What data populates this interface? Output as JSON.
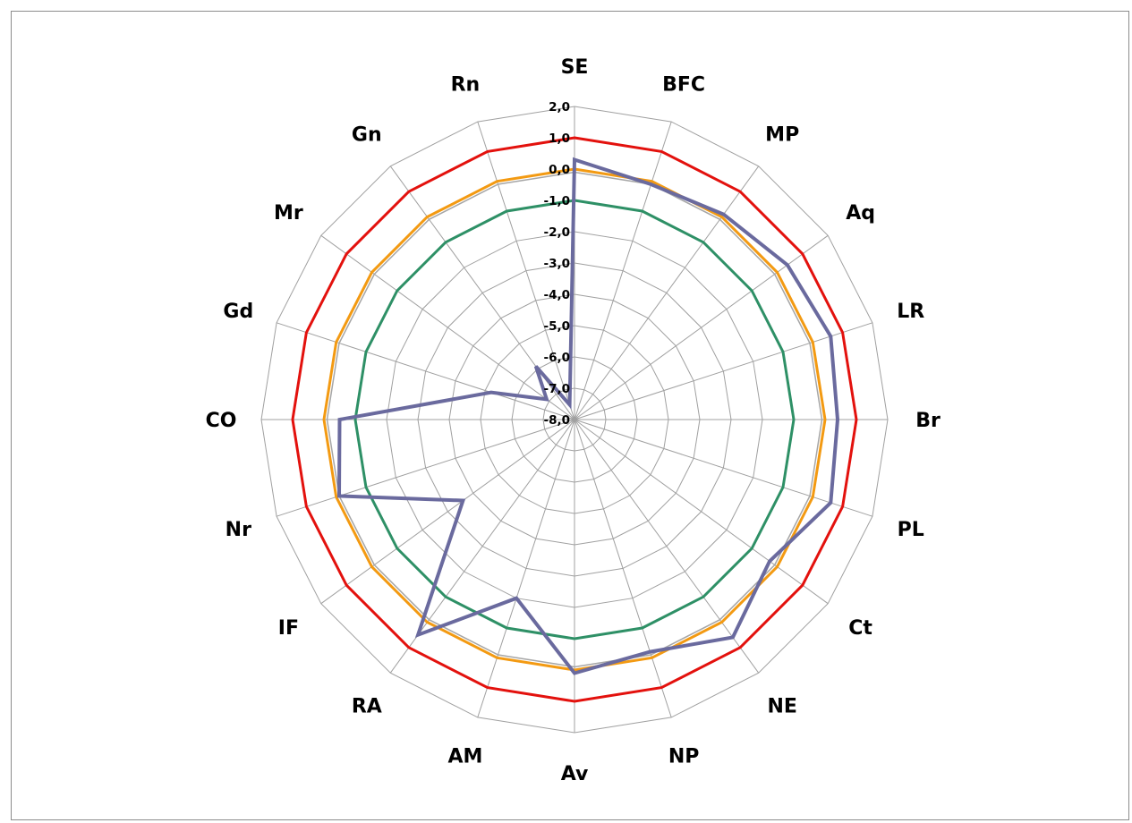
{
  "chart_data": {
    "type": "radar",
    "categories": [
      "SE",
      "BFC",
      "MP",
      "Aq",
      "LR",
      "Br",
      "PL",
      "Ct",
      "NE",
      "NP",
      "Av",
      "AM",
      "RA",
      "IF",
      "Nr",
      "CO",
      "Gd",
      "Mr",
      "Gn",
      "Rn"
    ],
    "axis_range": [
      -8.0,
      2.0
    ],
    "ticks": [
      "2,0",
      "1,0",
      "0,0",
      "-1,0",
      "-2,0",
      "-3,0",
      "-4,0",
      "-5,0",
      "-6,0",
      "-7,0",
      "-8,0"
    ],
    "tick_values": [
      2,
      1,
      0,
      -1,
      -2,
      -3,
      -4,
      -5,
      -6,
      -7,
      -8
    ],
    "series": [
      {
        "color": "#e3110d",
        "values": [
          1,
          1,
          1,
          1,
          1,
          1,
          1,
          1,
          1,
          1,
          1,
          1,
          1,
          1,
          1,
          1,
          1,
          1,
          1,
          1
        ]
      },
      {
        "color": "#f39a12",
        "values": [
          0,
          0,
          0,
          0,
          0,
          0,
          0,
          0,
          0,
          0,
          0,
          0,
          0,
          0,
          0,
          0,
          0,
          0,
          0,
          0
        ]
      },
      {
        "color": "#a6a6a6",
        "values": [
          -0.1,
          -0.1,
          -0.1,
          -0.1,
          -0.1,
          -0.1,
          -0.1,
          -0.1,
          -0.1,
          -0.1,
          -0.1,
          -0.1,
          -0.1,
          -0.1,
          -0.1,
          -0.1,
          -0.1,
          -0.1,
          -0.1,
          -0.1
        ]
      },
      {
        "color": "#2e9066",
        "values": [
          -1,
          -1,
          -1,
          -1,
          -1,
          -1,
          -1,
          -1,
          -1,
          -1,
          -1,
          -1,
          -1,
          -1,
          -1,
          -1,
          -1,
          -1,
          -1,
          -1
        ]
      },
      {
        "color": "#6a6a9e",
        "values": [
          0.3,
          -0.1,
          0.1,
          0.4,
          0.6,
          0.4,
          0.6,
          -0.3,
          0.6,
          -0.2,
          0.1,
          -2.0,
          0.5,
          -3.6,
          -0.1,
          -0.5,
          -5.2,
          -6.9,
          -5.9,
          -7.5
        ]
      }
    ],
    "grid": true,
    "legend": "none"
  }
}
